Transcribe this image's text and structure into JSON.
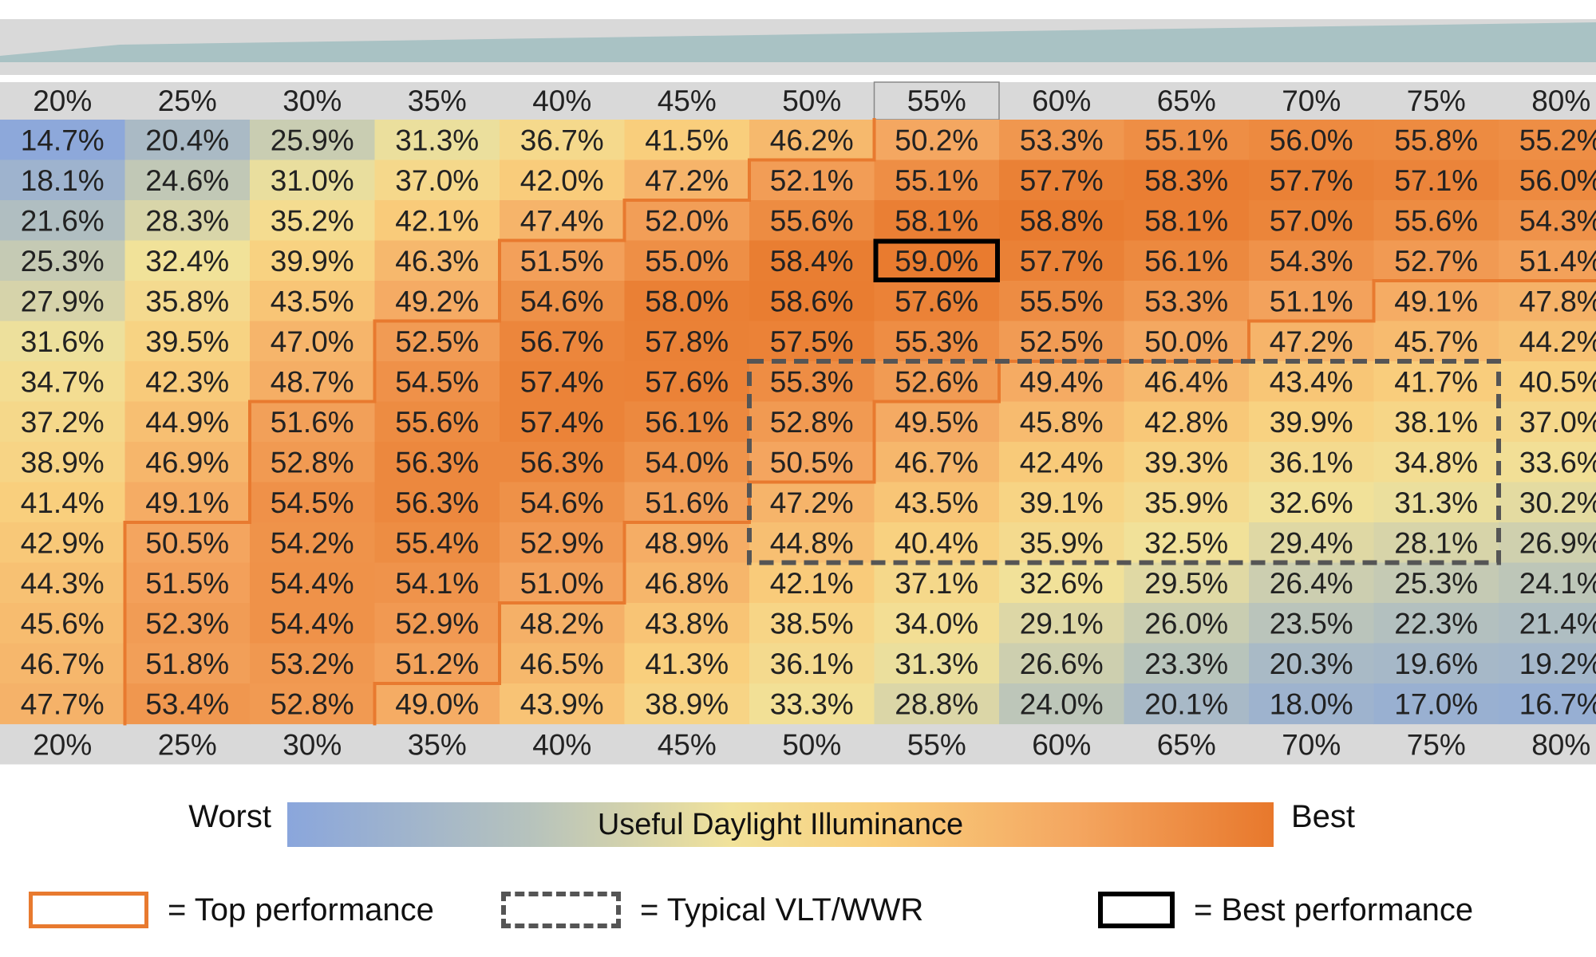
{
  "chart_data": {
    "type": "heatmap",
    "title": "",
    "colorbar": {
      "title": "Useful Daylight Illuminance",
      "low_label": "Worst",
      "high_label": "Best",
      "colors": [
        "#8aa6dc",
        "#b7c3bc",
        "#f1e29a",
        "#f9cf7d",
        "#f4a660",
        "#e8782c"
      ]
    },
    "columns": [
      "20%",
      "25%",
      "30%",
      "35%",
      "40%",
      "45%",
      "50%",
      "55%",
      "60%",
      "65%",
      "70%",
      "75%",
      "80%"
    ],
    "values": [
      [
        14.7,
        20.4,
        25.9,
        31.3,
        36.7,
        41.5,
        46.2,
        50.2,
        53.3,
        55.1,
        56.0,
        55.8,
        55.2
      ],
      [
        18.1,
        24.6,
        31.0,
        37.0,
        42.0,
        47.2,
        52.1,
        55.1,
        57.7,
        58.3,
        57.7,
        57.1,
        56.0
      ],
      [
        21.6,
        28.3,
        35.2,
        42.1,
        47.4,
        52.0,
        55.6,
        58.1,
        58.8,
        58.1,
        57.0,
        55.6,
        54.3
      ],
      [
        25.3,
        32.4,
        39.9,
        46.3,
        51.5,
        55.0,
        58.4,
        59.0,
        57.7,
        56.1,
        54.3,
        52.7,
        51.4
      ],
      [
        27.9,
        35.8,
        43.5,
        49.2,
        54.6,
        58.0,
        58.6,
        57.6,
        55.5,
        53.3,
        51.1,
        49.1,
        47.8
      ],
      [
        31.6,
        39.5,
        47.0,
        52.5,
        56.7,
        57.8,
        57.5,
        55.3,
        52.5,
        50.0,
        47.2,
        45.7,
        44.2
      ],
      [
        34.7,
        42.3,
        48.7,
        54.5,
        57.4,
        57.6,
        55.3,
        52.6,
        49.4,
        46.4,
        43.4,
        41.7,
        40.5
      ],
      [
        37.2,
        44.9,
        51.6,
        55.6,
        57.4,
        56.1,
        52.8,
        49.5,
        45.8,
        42.8,
        39.9,
        38.1,
        37.0
      ],
      [
        38.9,
        46.9,
        52.8,
        56.3,
        56.3,
        54.0,
        50.5,
        46.7,
        42.4,
        39.3,
        36.1,
        34.8,
        33.6
      ],
      [
        41.4,
        49.1,
        54.5,
        56.3,
        54.6,
        51.6,
        47.2,
        43.5,
        39.1,
        35.9,
        32.6,
        31.3,
        30.2
      ],
      [
        42.9,
        50.5,
        54.2,
        55.4,
        52.9,
        48.9,
        44.8,
        40.4,
        35.9,
        32.5,
        29.4,
        28.1,
        26.9
      ],
      [
        44.3,
        51.5,
        54.4,
        54.1,
        51.0,
        46.8,
        42.1,
        37.1,
        32.6,
        29.5,
        26.4,
        25.3,
        24.1
      ],
      [
        45.6,
        52.3,
        54.4,
        52.9,
        48.2,
        43.8,
        38.5,
        34.0,
        29.1,
        26.0,
        23.5,
        22.3,
        21.4
      ],
      [
        46.7,
        51.8,
        53.2,
        51.2,
        46.5,
        41.3,
        36.1,
        31.3,
        26.6,
        23.3,
        20.3,
        19.6,
        19.2
      ],
      [
        47.7,
        53.4,
        52.8,
        49.0,
        43.9,
        38.9,
        33.3,
        28.8,
        24.0,
        20.1,
        18.0,
        17.0,
        16.7
      ]
    ],
    "top_performance_cells": [
      [
        0,
        7
      ],
      [
        0,
        8
      ],
      [
        0,
        9
      ],
      [
        0,
        10
      ],
      [
        0,
        11
      ],
      [
        0,
        12
      ],
      [
        1,
        6
      ],
      [
        1,
        7
      ],
      [
        1,
        8
      ],
      [
        1,
        9
      ],
      [
        1,
        10
      ],
      [
        1,
        11
      ],
      [
        1,
        12
      ],
      [
        2,
        5
      ],
      [
        2,
        6
      ],
      [
        2,
        7
      ],
      [
        2,
        8
      ],
      [
        2,
        9
      ],
      [
        2,
        10
      ],
      [
        2,
        11
      ],
      [
        2,
        12
      ],
      [
        3,
        4
      ],
      [
        3,
        5
      ],
      [
        3,
        6
      ],
      [
        3,
        7
      ],
      [
        3,
        8
      ],
      [
        3,
        9
      ],
      [
        3,
        10
      ],
      [
        3,
        11
      ],
      [
        3,
        12
      ],
      [
        4,
        4
      ],
      [
        4,
        5
      ],
      [
        4,
        6
      ],
      [
        4,
        7
      ],
      [
        4,
        8
      ],
      [
        4,
        9
      ],
      [
        4,
        10
      ],
      [
        5,
        3
      ],
      [
        5,
        4
      ],
      [
        5,
        5
      ],
      [
        5,
        6
      ],
      [
        5,
        7
      ],
      [
        5,
        8
      ],
      [
        5,
        9
      ],
      [
        6,
        3
      ],
      [
        6,
        4
      ],
      [
        6,
        5
      ],
      [
        6,
        6
      ],
      [
        6,
        7
      ],
      [
        7,
        2
      ],
      [
        7,
        3
      ],
      [
        7,
        4
      ],
      [
        7,
        5
      ],
      [
        7,
        6
      ],
      [
        8,
        2
      ],
      [
        8,
        3
      ],
      [
        8,
        4
      ],
      [
        8,
        5
      ],
      [
        8,
        6
      ],
      [
        9,
        2
      ],
      [
        9,
        3
      ],
      [
        9,
        4
      ],
      [
        9,
        5
      ],
      [
        10,
        1
      ],
      [
        10,
        2
      ],
      [
        10,
        3
      ],
      [
        10,
        4
      ],
      [
        11,
        1
      ],
      [
        11,
        2
      ],
      [
        11,
        3
      ],
      [
        11,
        4
      ],
      [
        12,
        1
      ],
      [
        12,
        2
      ],
      [
        12,
        3
      ],
      [
        13,
        1
      ],
      [
        13,
        2
      ],
      [
        13,
        3
      ],
      [
        14,
        1
      ],
      [
        14,
        2
      ]
    ],
    "typical_region": {
      "rows": [
        6,
        10
      ],
      "cols": [
        6,
        11
      ]
    },
    "best_cell": [
      3,
      7
    ]
  },
  "legend": {
    "top_performance": "= Top performance",
    "typical": "= Typical VLT/WWR",
    "best_performance": "= Best performance",
    "top_color": "#e87a2f",
    "typical_color": "#555555",
    "best_color": "#000000"
  }
}
